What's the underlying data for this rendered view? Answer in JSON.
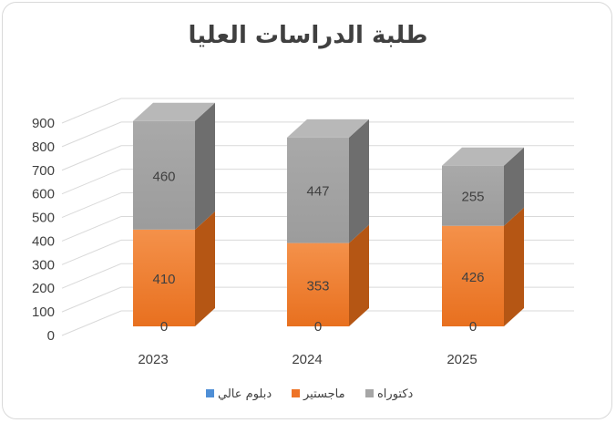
{
  "chart_data": {
    "type": "bar",
    "stacked": true,
    "three_d": true,
    "title": "طلبة الدراسات العليا",
    "categories": [
      "2023",
      "2024",
      "2025"
    ],
    "series": [
      {
        "name": "دبلوم عالي",
        "values": [
          0,
          0,
          0
        ],
        "color": "#4f8fd6"
      },
      {
        "name": "ماجستير",
        "values": [
          410,
          353,
          426
        ],
        "color": "#ee7326"
      },
      {
        "name": "دكتوراه",
        "values": [
          460,
          447,
          255
        ],
        "color": "#a6a6a6"
      }
    ],
    "ylim": [
      0,
      900
    ],
    "yticks": [
      0,
      100,
      200,
      300,
      400,
      500,
      600,
      700,
      800,
      900
    ],
    "grid": true,
    "legend_position": "bottom"
  }
}
